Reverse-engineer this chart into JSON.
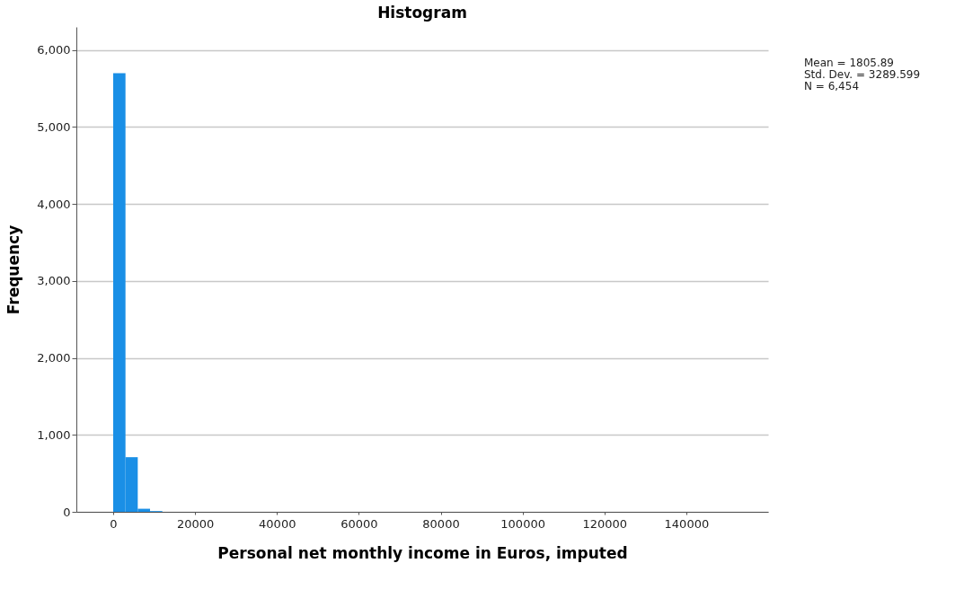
{
  "chart_data": {
    "type": "histogram",
    "title": "Histogram",
    "xlabel": "Personal net monthly income in Euros, imputed",
    "ylabel": "Frequency",
    "bins": [
      0,
      3000,
      6000,
      9000,
      12000
    ],
    "values": [
      5700,
      710,
      40,
      10
    ],
    "color": "#1a8fe6",
    "xlim": [
      -9000,
      160000
    ],
    "xticks": [
      0,
      20000,
      40000,
      60000,
      80000,
      100000,
      120000,
      140000
    ],
    "ylim": [
      0,
      6300
    ],
    "yticks": [
      {
        "value": 0,
        "label": "0"
      },
      {
        "value": 1000,
        "label": "1,000"
      },
      {
        "value": 2000,
        "label": "2,000"
      },
      {
        "value": 3000,
        "label": "3,000"
      },
      {
        "value": 4000,
        "label": "4,000"
      },
      {
        "value": 5000,
        "label": "5,000"
      },
      {
        "value": 6000,
        "label": "6,000"
      }
    ],
    "grid": "y",
    "annotations": [
      "Mean = 1805.89",
      "Std. Dev. = 3289.599",
      "N = 6,454"
    ]
  }
}
